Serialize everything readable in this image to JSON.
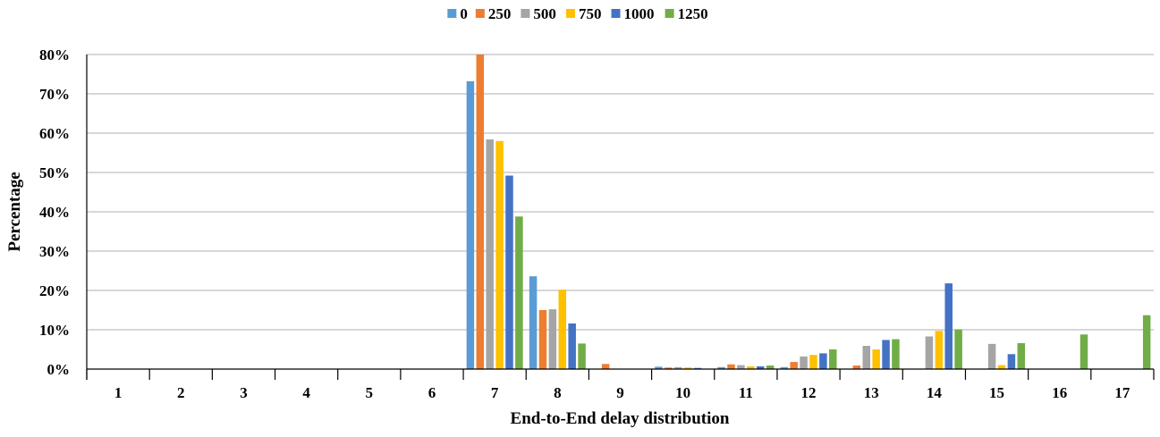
{
  "chart_data": {
    "type": "bar",
    "title": "",
    "xlabel": "End-to-End delay distribution",
    "ylabel": "Percentage",
    "ylim": [
      0,
      80
    ],
    "yticks": [
      "0%",
      "10%",
      "20%",
      "30%",
      "40%",
      "50%",
      "60%",
      "70%",
      "80%"
    ],
    "grid": true,
    "legend": "top-center",
    "categories": [
      "1",
      "2",
      "3",
      "4",
      "5",
      "6",
      "7",
      "8",
      "9",
      "10",
      "11",
      "12",
      "13",
      "14",
      "15",
      "16",
      "17"
    ],
    "series": [
      {
        "name": "0",
        "color": "#5B9BD5",
        "values": [
          0,
          0,
          0,
          0,
          0,
          0,
          73.2,
          23.6,
          0,
          0.6,
          0.5,
          0.5,
          0,
          0,
          0,
          0,
          0
        ]
      },
      {
        "name": "250",
        "color": "#ED7D31",
        "values": [
          0,
          0,
          0,
          0,
          0,
          0,
          80.0,
          15.0,
          1.3,
          0.4,
          1.2,
          1.8,
          0.9,
          0,
          0,
          0,
          0
        ]
      },
      {
        "name": "500",
        "color": "#A5A5A5",
        "values": [
          0,
          0,
          0,
          0,
          0,
          0,
          58.4,
          15.2,
          0,
          0.5,
          1.0,
          3.2,
          5.9,
          8.3,
          6.4,
          0,
          0
        ]
      },
      {
        "name": "750",
        "color": "#FFC000",
        "values": [
          0,
          0,
          0,
          0,
          0,
          0,
          58.0,
          20.2,
          0,
          0.4,
          0.7,
          3.6,
          5.0,
          9.7,
          1.0,
          0,
          0
        ]
      },
      {
        "name": "1000",
        "color": "#4472C4",
        "values": [
          0,
          0,
          0,
          0,
          0,
          0,
          49.2,
          11.6,
          0,
          0.3,
          0.7,
          4.0,
          7.4,
          21.8,
          3.8,
          0,
          0
        ]
      },
      {
        "name": "1250",
        "color": "#70AD47",
        "values": [
          0,
          0,
          0,
          0,
          0,
          0,
          38.8,
          6.5,
          0,
          0,
          0.9,
          5.0,
          7.6,
          10.1,
          6.6,
          8.8,
          13.7
        ]
      }
    ]
  }
}
